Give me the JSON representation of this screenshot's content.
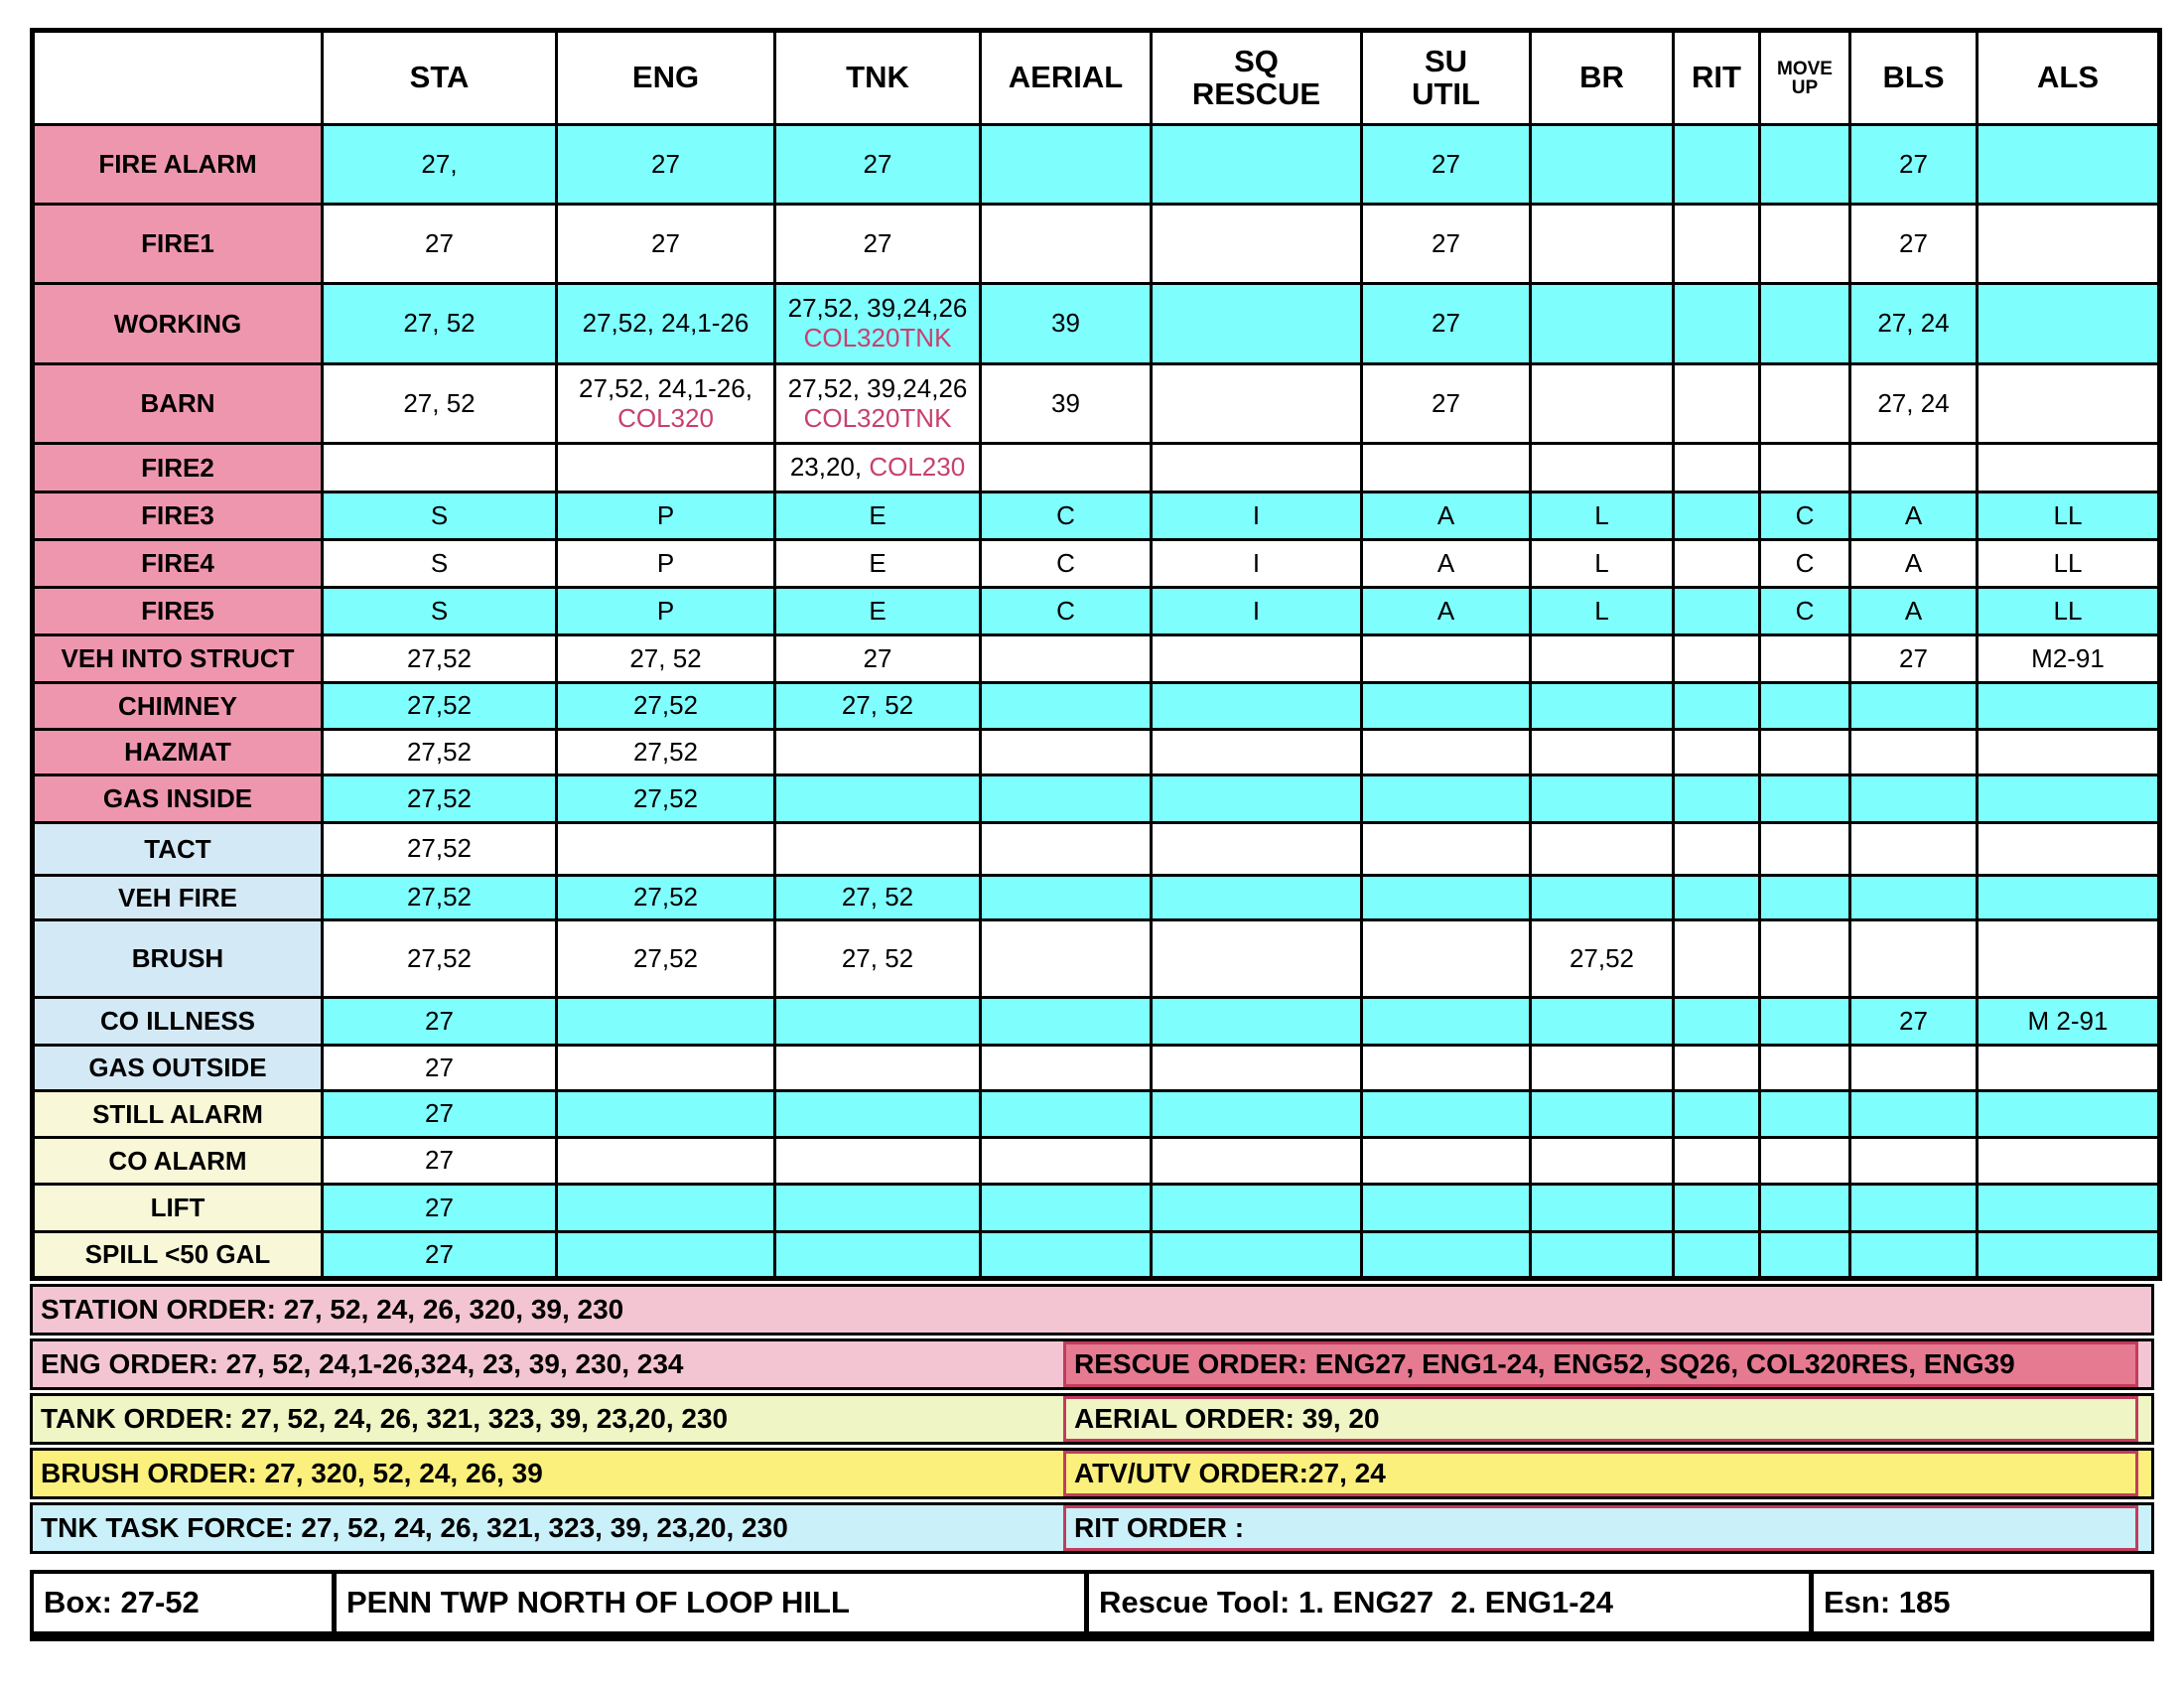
{
  "colors": {
    "cell_cyan": "#7FFEFE",
    "label_pink": "#EF96AF",
    "label_blue": "#D4E9F6",
    "label_yellow": "#F8F8D8",
    "accent_text": "#C8406E",
    "order_pink": "#F3C5D3",
    "order_green": "#EFF5C4",
    "order_yellow": "#FCF07D",
    "order_cyan": "#CAF0FA",
    "rescue_box_fill": "#E57A91",
    "order_box_border": "#C13C5E"
  },
  "table": {
    "columns": [
      {
        "key": "label",
        "label": ""
      },
      {
        "key": "STA",
        "label": "STA"
      },
      {
        "key": "ENG",
        "label": "ENG"
      },
      {
        "key": "TNK",
        "label": "TNK"
      },
      {
        "key": "AERIAL",
        "label": "AERIAL"
      },
      {
        "key": "SQ-RESCUE",
        "label": "SQ\nRESCUE"
      },
      {
        "key": "SU-UTIL",
        "label": "SU\nUTIL"
      },
      {
        "key": "BR",
        "label": "BR"
      },
      {
        "key": "RIT",
        "label": "RIT"
      },
      {
        "key": "MOVE-UP",
        "label": "MOVE\nUP",
        "small": true
      },
      {
        "key": "BLS",
        "label": "BLS"
      },
      {
        "key": "ALS",
        "label": "ALS"
      }
    ],
    "rows": [
      {
        "label": "FIRE ALARM",
        "label_bg": "pink",
        "row_bg": "cyan",
        "cells": [
          "27,",
          {
            "main": "27",
            "top": true
          },
          "27",
          "",
          "",
          "27",
          "",
          "",
          "",
          "27",
          ""
        ]
      },
      {
        "label": "FIRE1",
        "label_bg": "pink",
        "row_bg": "white",
        "cells": [
          "27",
          {
            "main": "27",
            "top": true
          },
          "27",
          "",
          "",
          "27",
          "",
          "",
          "",
          "27",
          ""
        ]
      },
      {
        "label": "WORKING",
        "label_bg": "pink",
        "row_bg": "cyan",
        "cells": [
          "27, 52",
          {
            "main": "27,52, 24,1-26",
            "top": true
          },
          {
            "main": "27,52, 39,24,26",
            "accent": "COL320TNK",
            "stack": true
          },
          "39",
          "",
          "27",
          "",
          "",
          "",
          "27, 24",
          ""
        ]
      },
      {
        "label": "BARN",
        "label_bg": "pink",
        "row_bg": "white",
        "cells": [
          "27, 52",
          {
            "main": "27,52, 24,1-26,",
            "accent": "COL320",
            "stack": true
          },
          {
            "main": "27,52, 39,24,26",
            "accent": "COL320TNK",
            "stack": true
          },
          "39",
          "",
          "27",
          "",
          "",
          "",
          "27, 24",
          ""
        ]
      },
      {
        "label": "FIRE2",
        "label_bg": "pink",
        "row_bg": "white",
        "cells": [
          "",
          "",
          {
            "main": "23,20, ",
            "accent": "COL230",
            "stack": false
          },
          "",
          "",
          "",
          "",
          "",
          "",
          "",
          ""
        ]
      },
      {
        "label": "FIRE3",
        "label_bg": "pink",
        "row_bg": "cyan",
        "cells": [
          "S",
          "P",
          "E",
          "C",
          "I",
          "A",
          "L",
          "",
          "C",
          "A",
          "LL"
        ]
      },
      {
        "label": "FIRE4",
        "label_bg": "pink",
        "row_bg": "white",
        "cells": [
          "S",
          "P",
          "E",
          "C",
          "I",
          "A",
          "L",
          "",
          "C",
          "A",
          "LL"
        ]
      },
      {
        "label": "FIRE5",
        "label_bg": "pink",
        "row_bg": "cyan",
        "cells": [
          "S",
          "P",
          "E",
          "C",
          "I",
          "A",
          "L",
          "",
          "C",
          "A",
          "LL"
        ]
      },
      {
        "label": "VEH INTO STRUCT",
        "label_bg": "pink",
        "row_bg": "white",
        "cells": [
          "27,52",
          "27, 52",
          "27",
          "",
          "",
          "",
          "",
          "",
          "",
          "27",
          "M2-91"
        ]
      },
      {
        "label": "CHIMNEY",
        "label_bg": "pink",
        "row_bg": "cyan",
        "cells": [
          "27,52",
          "27,52",
          "27, 52",
          "",
          "",
          "",
          "",
          "",
          "",
          "",
          ""
        ]
      },
      {
        "label": "HAZMAT",
        "label_bg": "pink",
        "row_bg": "white",
        "cells": [
          "27,52",
          "27,52",
          "",
          "",
          "",
          "",
          "",
          "",
          "",
          "",
          ""
        ]
      },
      {
        "label": "GAS INSIDE",
        "label_bg": "pink",
        "row_bg": "cyan",
        "cells": [
          "27,52",
          "27,52",
          "",
          "",
          "",
          "",
          "",
          "",
          "",
          "",
          ""
        ]
      },
      {
        "label": "TACT",
        "label_bg": "blue",
        "row_bg": "white",
        "cells": [
          "27,52",
          "",
          "",
          "",
          "",
          "",
          "",
          "",
          "",
          "",
          ""
        ]
      },
      {
        "label": "VEH FIRE",
        "label_bg": "blue",
        "row_bg": "cyan",
        "cells": [
          "27,52",
          "27,52",
          "27, 52",
          "",
          "",
          "",
          "",
          "",
          "",
          "",
          ""
        ]
      },
      {
        "label": "BRUSH",
        "label_bg": "blue",
        "row_bg": "white",
        "cells": [
          "27,52",
          "27,52",
          "27, 52",
          "",
          "",
          "",
          "27,52",
          "",
          "",
          "",
          ""
        ]
      },
      {
        "label": "CO ILLNESS",
        "label_bg": "blue",
        "row_bg": "cyan",
        "cells": [
          "27",
          "",
          "",
          "",
          "",
          "",
          "",
          "",
          "",
          "27",
          "M 2-91"
        ]
      },
      {
        "label": "GAS OUTSIDE",
        "label_bg": "blue",
        "row_bg": "white",
        "cells": [
          "27",
          "",
          "",
          "",
          "",
          "",
          "",
          "",
          "",
          "",
          ""
        ]
      },
      {
        "label": "STILL ALARM",
        "label_bg": "yellow",
        "row_bg": "cyan",
        "cells": [
          "27",
          "",
          "",
          "",
          "",
          "",
          "",
          "",
          "",
          "",
          ""
        ]
      },
      {
        "label": "CO ALARM",
        "label_bg": "yellow",
        "row_bg": "white",
        "cells": [
          "27",
          "",
          "",
          "",
          "",
          "",
          "",
          "",
          "",
          "",
          ""
        ]
      },
      {
        "label": "LIFT",
        "label_bg": "yellow",
        "row_bg": "cyan",
        "cells": [
          "27",
          "",
          "",
          "",
          "",
          "",
          "",
          "",
          "",
          "",
          ""
        ]
      },
      {
        "label": "SPILL <50 GAL",
        "label_bg": "yellow",
        "row_bg": "cyan",
        "cells": [
          "27",
          "",
          "",
          "",
          "",
          "",
          "",
          "",
          "",
          "",
          ""
        ]
      }
    ]
  },
  "orders": {
    "station": "STATION ORDER: 27, 52, 24, 26, 320, 39, 230",
    "left": [
      {
        "text": "ENG ORDER: 27, 52, 24,1-26,324, 23, 39, 230, 234"
      },
      {
        "text": "TANK ORDER: 27, 52, 24, 26, 321, 323, 39, 23,20, 230"
      },
      {
        "text": "BRUSH ORDER: 27, 320, 52, 24, 26, 39"
      },
      {
        "text": "TNK TASK FORCE: 27, 52, 24, 26, 321, 323, 39, 23,20, 230"
      }
    ],
    "right": [
      {
        "text": "RESCUE ORDER: ENG27, ENG1-24, ENG52, SQ26, COL320RES, ENG39"
      },
      {
        "text": "AERIAL ORDER: 39, 20"
      },
      {
        "text": "ATV/UTV ORDER:27, 24"
      },
      {
        "text": "RIT ORDER :"
      }
    ]
  },
  "footer": {
    "box": "Box: 27-52",
    "location": "PENN TWP NORTH OF LOOP HILL",
    "rescue_tool": "Rescue Tool: 1. ENG27  2. ENG1-24",
    "esn": "Esn: 185"
  }
}
